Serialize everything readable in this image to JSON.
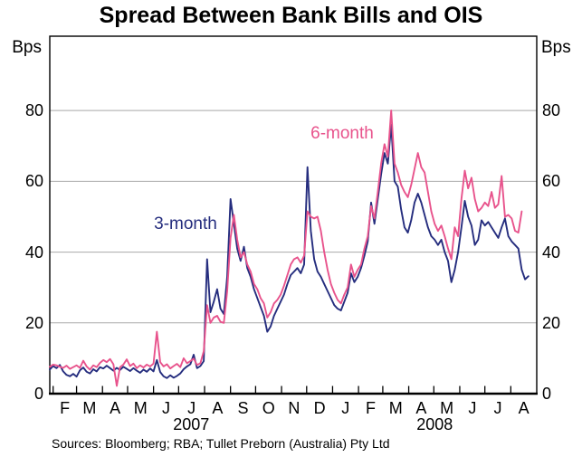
{
  "header": {
    "title": "Spread Between Bank Bills and OIS"
  },
  "axis_units": {
    "left": "Bps",
    "right": "Bps"
  },
  "footer": {
    "sources": "Sources: Bloomberg; RBA; Tullet Preborn (Australia) Pty Ltd"
  },
  "colors": {
    "series_3m": "#252D7E",
    "series_6m": "#E8538C",
    "grid": "#A9A9A9",
    "axis": "#000000",
    "background": "#FFFFFF"
  },
  "chart_data": {
    "type": "line",
    "title": "Spread Between Bank Bills and OIS",
    "ylabel": "Bps",
    "ylim": [
      0,
      101
    ],
    "yticks": [
      0,
      20,
      40,
      60,
      80
    ],
    "grid": "horizontal",
    "x_span_days": 582,
    "sample_interval_days": 4,
    "month_tick_days": [
      4,
      32,
      63,
      93,
      124,
      154,
      185,
      216,
      246,
      277,
      307,
      338,
      369,
      398,
      429,
      459,
      490,
      520,
      551
    ],
    "month_labels": [
      "F",
      "M",
      "A",
      "M",
      "J",
      "J",
      "A",
      "S",
      "O",
      "N",
      "D",
      "J",
      "F",
      "M",
      "A",
      "M",
      "J",
      "J",
      "A"
    ],
    "years": [
      {
        "label": "2007",
        "from_day": 0,
        "to_day": 338
      },
      {
        "label": "2008",
        "from_day": 338,
        "to_day": 582
      }
    ],
    "series": [
      {
        "name": "3-month",
        "color": "#252D7E",
        "values": [
          6.8,
          7.8,
          7.2,
          8.1,
          6.3,
          5.3,
          4.9,
          5.6,
          4.8,
          6.6,
          7.4,
          6.2,
          5.7,
          6.9,
          6.3,
          7.5,
          7.1,
          7.9,
          7.2,
          6.5,
          7.3,
          6.7,
          7.6,
          7.0,
          6.4,
          7.2,
          6.5,
          5.9,
          6.8,
          6.2,
          7.1,
          6.3,
          9.5,
          6.1,
          4.9,
          4.4,
          5.2,
          4.5,
          5.0,
          5.7,
          6.9,
          7.7,
          8.3,
          11.0,
          7.2,
          7.8,
          9.2,
          38,
          23,
          26,
          29.5,
          24,
          22.5,
          33,
          55,
          48,
          41,
          37.5,
          41.5,
          35.5,
          33,
          29.5,
          27,
          24.5,
          22,
          17.5,
          19,
          22,
          24,
          26,
          28,
          31,
          33.5,
          34.5,
          35.5,
          34,
          36.5,
          64,
          46,
          38,
          34.5,
          33,
          31,
          29,
          27,
          25,
          24,
          23.5,
          26,
          28.5,
          34,
          31.5,
          33,
          35.5,
          39,
          43,
          54,
          48,
          55,
          62,
          68,
          65,
          76,
          60,
          58.5,
          52,
          47,
          45.5,
          49,
          54,
          56.5,
          54,
          50.5,
          47,
          44.5,
          43.5,
          42,
          43.5,
          40,
          37.5,
          31.5,
          35,
          40,
          47,
          54.5,
          50,
          47.5,
          42,
          43.5,
          49,
          47.5,
          48.5,
          47,
          45.5,
          44,
          47,
          49.5,
          44.5,
          43,
          42,
          41,
          35,
          32.3,
          33.2
        ]
      },
      {
        "name": "6-month",
        "color": "#E8538C",
        "values": [
          7.6,
          8.2,
          8.0,
          7.6,
          7.3,
          7.9,
          7.0,
          7.5,
          8.0,
          7.3,
          9.3,
          7.7,
          6.8,
          8.0,
          7.5,
          8.7,
          9.5,
          8.9,
          9.8,
          8.3,
          2.2,
          7.5,
          8.2,
          9.7,
          7.8,
          8.5,
          7.2,
          8.0,
          7.4,
          8.2,
          7.7,
          8.5,
          17.5,
          8.9,
          7.7,
          8.3,
          7.1,
          7.8,
          8.4,
          7.5,
          10.0,
          8.6,
          9.2,
          9.9,
          8.1,
          8.6,
          12.0,
          25,
          20,
          21.5,
          22,
          20.3,
          20,
          29,
          44,
          50.5,
          43.5,
          38.5,
          40,
          36.5,
          34.5,
          31,
          29.5,
          27,
          25.5,
          21.5,
          23,
          25.5,
          26.5,
          28,
          30.5,
          33.5,
          36.5,
          38,
          38.5,
          37,
          39,
          51.5,
          50,
          49.5,
          50,
          46,
          40,
          35,
          31,
          28.5,
          26.5,
          25.5,
          28,
          30,
          36.5,
          33,
          35,
          36.5,
          41,
          44.5,
          53,
          49.5,
          57,
          65,
          70.5,
          67,
          80,
          65,
          62.5,
          59,
          57,
          55.5,
          59,
          63.5,
          68,
          64,
          62.5,
          57,
          51.5,
          48,
          46,
          47.5,
          44.5,
          41,
          38,
          47,
          44.5,
          55,
          63,
          58,
          61,
          55,
          51.5,
          52.5,
          54,
          53,
          57,
          52.5,
          53.5,
          61.5,
          50,
          50.5,
          49.5,
          46,
          45.5,
          51.5,
          null,
          null
        ]
      }
    ]
  }
}
